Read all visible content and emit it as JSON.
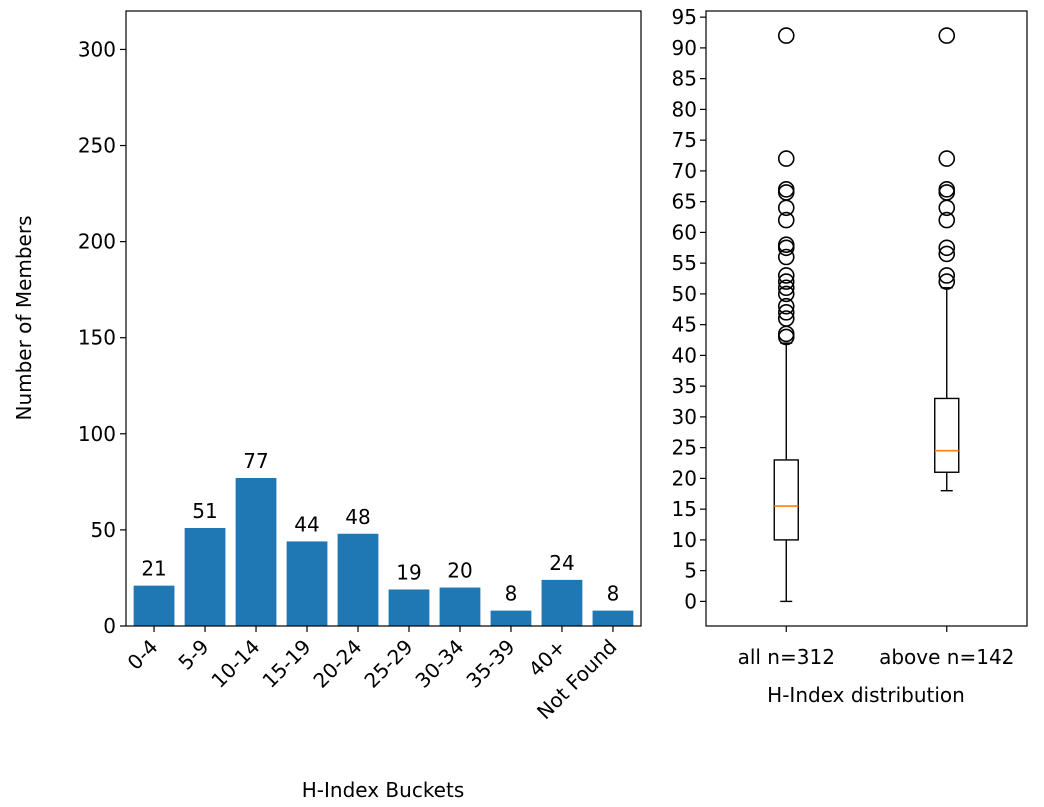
{
  "colors": {
    "bar": "#1f77b4",
    "median": "#ff7f0e",
    "line": "#000000"
  },
  "chart_data": [
    {
      "type": "bar",
      "categories": [
        "0-4",
        "5-9",
        "10-14",
        "15-19",
        "20-24",
        "25-29",
        "30-34",
        "35-39",
        "40+",
        "Not Found"
      ],
      "values": [
        21,
        51,
        77,
        44,
        48,
        19,
        20,
        8,
        24,
        8
      ],
      "data_labels": [
        "21",
        "51",
        "77",
        "44",
        "48",
        "19",
        "20",
        "8",
        "24",
        "8"
      ],
      "xlabel": "H-Index Buckets",
      "ylabel": "Number of Members",
      "ylim": [
        0,
        320
      ],
      "yticks": [
        0,
        50,
        100,
        150,
        200,
        250,
        300
      ],
      "grid": false
    },
    {
      "type": "box",
      "xlabel": "H-Index distribution",
      "ylim": [
        -4,
        96
      ],
      "yticks": [
        0,
        5,
        10,
        15,
        20,
        25,
        30,
        35,
        40,
        45,
        50,
        55,
        60,
        65,
        70,
        75,
        80,
        85,
        90,
        95
      ],
      "grid": false,
      "series": [
        {
          "name": "all n=312",
          "whisker_low": 0,
          "q1": 10,
          "median": 15.5,
          "q3": 23,
          "whisker_high": 42,
          "outliers": [
            43,
            43.5,
            46,
            47,
            48,
            50,
            51,
            52,
            53,
            56,
            57.5,
            58,
            62,
            64,
            66.5,
            67,
            72,
            92
          ]
        },
        {
          "name": "above n=142",
          "whisker_low": 18,
          "q1": 21,
          "median": 24.5,
          "q3": 33,
          "whisker_high": 51,
          "outliers": [
            52,
            53,
            56.5,
            57.5,
            62,
            64,
            66.5,
            67,
            72,
            92
          ]
        }
      ]
    }
  ]
}
